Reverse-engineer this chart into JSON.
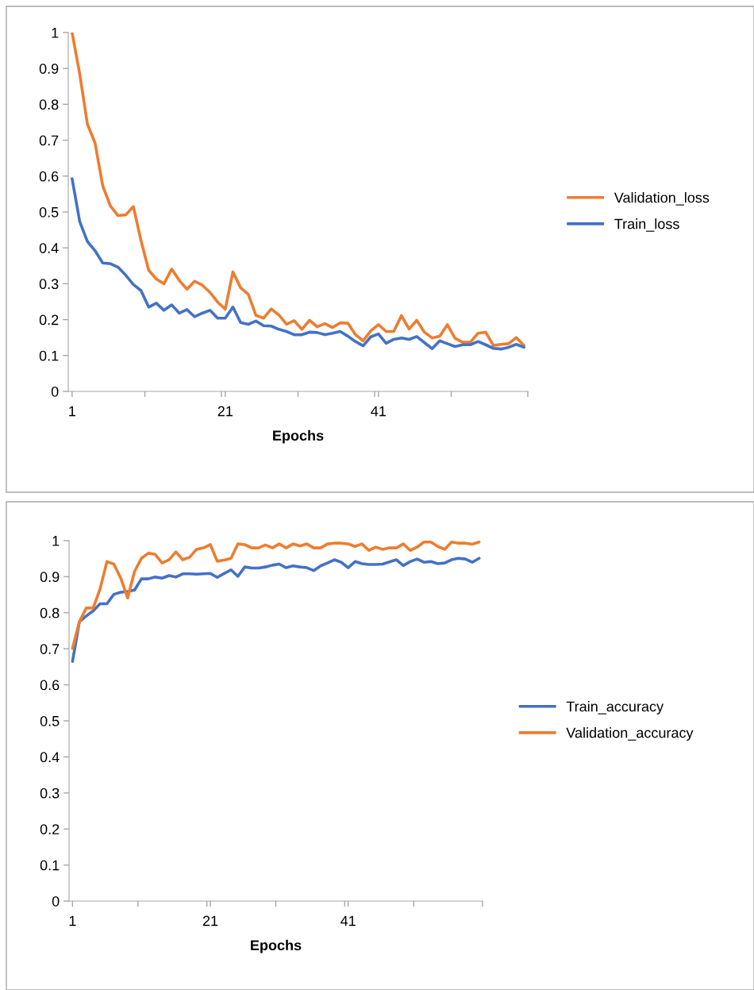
{
  "chart_data": [
    {
      "type": "line",
      "xlabel": "Epochs",
      "x": [
        1,
        2,
        3,
        4,
        5,
        6,
        7,
        8,
        9,
        10,
        11,
        12,
        13,
        14,
        15,
        16,
        17,
        18,
        19,
        20,
        21,
        22,
        23,
        24,
        25,
        26,
        27,
        28,
        29,
        30,
        31,
        32,
        33,
        34,
        35,
        36,
        37,
        38,
        39,
        40,
        41,
        42,
        43,
        44,
        45,
        46,
        47,
        48,
        49,
        50,
        51,
        52,
        53,
        54,
        55,
        56,
        57,
        58,
        59,
        60
      ],
      "xlim": [
        0.5,
        60.5
      ],
      "xticks": [
        1,
        {
          "value": 10.5,
          "label": null
        },
        21,
        {
          "value": 20.5,
          "label": null
        },
        {
          "value": 30.5,
          "label": null
        },
        41,
        {
          "value": 40.5,
          "label": null
        },
        {
          "value": 50.5,
          "label": null
        },
        {
          "value": 60.5,
          "label": null
        }
      ],
      "ylim": [
        0,
        1
      ],
      "yticks": [
        0,
        0.1,
        0.2,
        0.3,
        0.4,
        0.5,
        0.6,
        0.7,
        0.8,
        0.9,
        1
      ],
      "grid": false,
      "legend": "right",
      "marker": "none",
      "line_style": "solid",
      "series": [
        {
          "name": "Validation_loss",
          "color": "#ed7d31",
          "values": [
            1.0,
            0.884,
            0.745,
            0.692,
            0.573,
            0.517,
            0.49,
            0.492,
            0.515,
            0.42,
            0.338,
            0.313,
            0.3,
            0.341,
            0.309,
            0.285,
            0.307,
            0.296,
            0.276,
            0.249,
            0.229,
            0.333,
            0.289,
            0.271,
            0.212,
            0.204,
            0.23,
            0.213,
            0.187,
            0.197,
            0.173,
            0.198,
            0.18,
            0.189,
            0.178,
            0.191,
            0.19,
            0.158,
            0.141,
            0.169,
            0.186,
            0.167,
            0.167,
            0.211,
            0.174,
            0.198,
            0.165,
            0.149,
            0.154,
            0.186,
            0.148,
            0.137,
            0.137,
            0.162,
            0.165,
            0.128,
            0.131,
            0.133,
            0.15,
            0.128
          ]
        },
        {
          "name": "Train_loss",
          "color": "#4472c4",
          "values": [
            0.593,
            0.473,
            0.418,
            0.392,
            0.358,
            0.356,
            0.346,
            0.324,
            0.298,
            0.281,
            0.235,
            0.246,
            0.226,
            0.241,
            0.218,
            0.228,
            0.208,
            0.218,
            0.226,
            0.204,
            0.204,
            0.235,
            0.192,
            0.187,
            0.196,
            0.183,
            0.182,
            0.173,
            0.167,
            0.158,
            0.158,
            0.165,
            0.164,
            0.158,
            0.162,
            0.167,
            0.154,
            0.139,
            0.127,
            0.152,
            0.16,
            0.134,
            0.145,
            0.149,
            0.145,
            0.153,
            0.136,
            0.119,
            0.141,
            0.133,
            0.125,
            0.13,
            0.13,
            0.139,
            0.13,
            0.12,
            0.118,
            0.123,
            0.131,
            0.123
          ]
        }
      ]
    },
    {
      "type": "line",
      "xlabel": "Epochs",
      "x": [
        1,
        2,
        3,
        4,
        5,
        6,
        7,
        8,
        9,
        10,
        11,
        12,
        13,
        14,
        15,
        16,
        17,
        18,
        19,
        20,
        21,
        22,
        23,
        24,
        25,
        26,
        27,
        28,
        29,
        30,
        31,
        32,
        33,
        34,
        35,
        36,
        37,
        38,
        39,
        40,
        41,
        42,
        43,
        44,
        45,
        46,
        47,
        48,
        49,
        50,
        51,
        52,
        53,
        54,
        55,
        56,
        57,
        58,
        59,
        60
      ],
      "xlim": [
        0.5,
        60.5
      ],
      "xticks": [
        1,
        {
          "value": 10.5,
          "label": null
        },
        21,
        {
          "value": 20.5,
          "label": null
        },
        {
          "value": 30.5,
          "label": null
        },
        41,
        {
          "value": 40.5,
          "label": null
        },
        {
          "value": 50.5,
          "label": null
        },
        {
          "value": 60.5,
          "label": null
        }
      ],
      "ylim": [
        0,
        1
      ],
      "yticks": [
        0,
        0.1,
        0.2,
        0.3,
        0.4,
        0.5,
        0.6,
        0.7,
        0.8,
        0.9,
        1
      ],
      "grid": false,
      "legend": "right",
      "marker": "none",
      "line_style": "solid",
      "series": [
        {
          "name": "Train_accuracy",
          "color": "#4472c4",
          "values": [
            0.665,
            0.775,
            0.791,
            0.805,
            0.825,
            0.825,
            0.851,
            0.857,
            0.859,
            0.863,
            0.894,
            0.894,
            0.899,
            0.896,
            0.903,
            0.899,
            0.908,
            0.908,
            0.907,
            0.908,
            0.909,
            0.898,
            0.909,
            0.919,
            0.901,
            0.927,
            0.924,
            0.924,
            0.927,
            0.932,
            0.935,
            0.925,
            0.93,
            0.927,
            0.925,
            0.917,
            0.93,
            0.938,
            0.947,
            0.94,
            0.925,
            0.942,
            0.936,
            0.934,
            0.934,
            0.935,
            0.941,
            0.947,
            0.931,
            0.942,
            0.949,
            0.94,
            0.942,
            0.936,
            0.938,
            0.947,
            0.951,
            0.949,
            0.94,
            0.951
          ]
        },
        {
          "name": "Validation_accuracy",
          "color": "#ed7d31",
          "values": [
            0.701,
            0.775,
            0.813,
            0.813,
            0.866,
            0.942,
            0.935,
            0.896,
            0.841,
            0.914,
            0.951,
            0.965,
            0.962,
            0.938,
            0.947,
            0.969,
            0.947,
            0.954,
            0.976,
            0.98,
            0.989,
            0.943,
            0.946,
            0.951,
            0.991,
            0.989,
            0.98,
            0.98,
            0.988,
            0.98,
            0.991,
            0.98,
            0.991,
            0.985,
            0.991,
            0.98,
            0.98,
            0.991,
            0.993,
            0.993,
            0.991,
            0.984,
            0.991,
            0.973,
            0.982,
            0.976,
            0.98,
            0.98,
            0.991,
            0.973,
            0.982,
            0.996,
            0.996,
            0.984,
            0.976,
            0.996,
            0.993,
            0.993,
            0.99,
            0.996
          ]
        }
      ]
    }
  ]
}
